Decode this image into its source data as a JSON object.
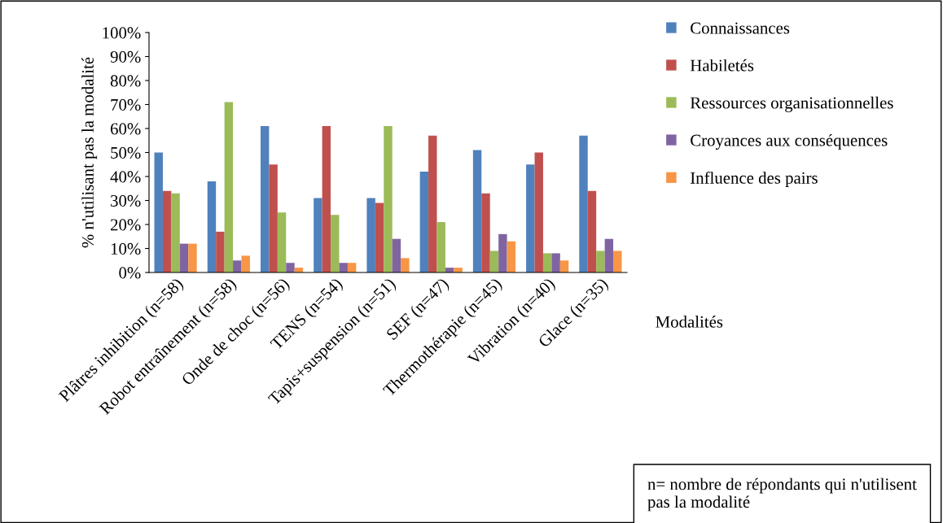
{
  "chart_data": {
    "type": "bar",
    "ylabel": "% n'utilisant pas la modalité",
    "xlabel": "Modalités",
    "categories": [
      "Plâtres inhibition (n=58)",
      "Robot entraînement (n=58)",
      "Onde de choc (n=56)",
      "TENS (n=54)",
      "Tapis+suspension (n=51)",
      "SEF (n=47)",
      "Thermothérapie (n=45)",
      "Vibration (n=40)",
      "Glace (n=35)"
    ],
    "series": [
      {
        "name": "Connaissances",
        "color": "#4f81bd",
        "values": [
          50,
          38,
          61,
          31,
          31,
          42,
          51,
          45,
          57
        ]
      },
      {
        "name": "Habiletés",
        "color": "#c0504d",
        "values": [
          34,
          17,
          45,
          61,
          29,
          57,
          33,
          50,
          34
        ]
      },
      {
        "name": "Ressources organisationnelles",
        "color": "#9bbb59",
        "values": [
          33,
          71,
          25,
          24,
          61,
          21,
          9,
          8,
          9
        ]
      },
      {
        "name": "Croyances aux conséquences",
        "color": "#8064a2",
        "values": [
          12,
          5,
          4,
          4,
          14,
          2,
          16,
          8,
          14
        ]
      },
      {
        "name": "Influence des pairs",
        "color": "#f79646",
        "values": [
          12,
          7,
          2,
          4,
          6,
          2,
          13,
          5,
          9
        ]
      }
    ],
    "ylim": [
      0,
      100
    ],
    "yticks": [
      {
        "value": 0,
        "label": "0%"
      },
      {
        "value": 10,
        "label": "10%"
      },
      {
        "value": 20,
        "label": "20%"
      },
      {
        "value": 30,
        "label": "30%"
      },
      {
        "value": 40,
        "label": "40%"
      },
      {
        "value": 50,
        "label": "50%"
      },
      {
        "value": 60,
        "label": "60%"
      },
      {
        "value": 70,
        "label": "70%"
      },
      {
        "value": 80,
        "label": "80%"
      },
      {
        "value": 90,
        "label": "90%"
      },
      {
        "value": 100,
        "label": "100%"
      }
    ],
    "grid": false,
    "legend": "right",
    "annotations": [
      "n= nombre de répondants qui n'utilisent pas la modalité"
    ]
  }
}
